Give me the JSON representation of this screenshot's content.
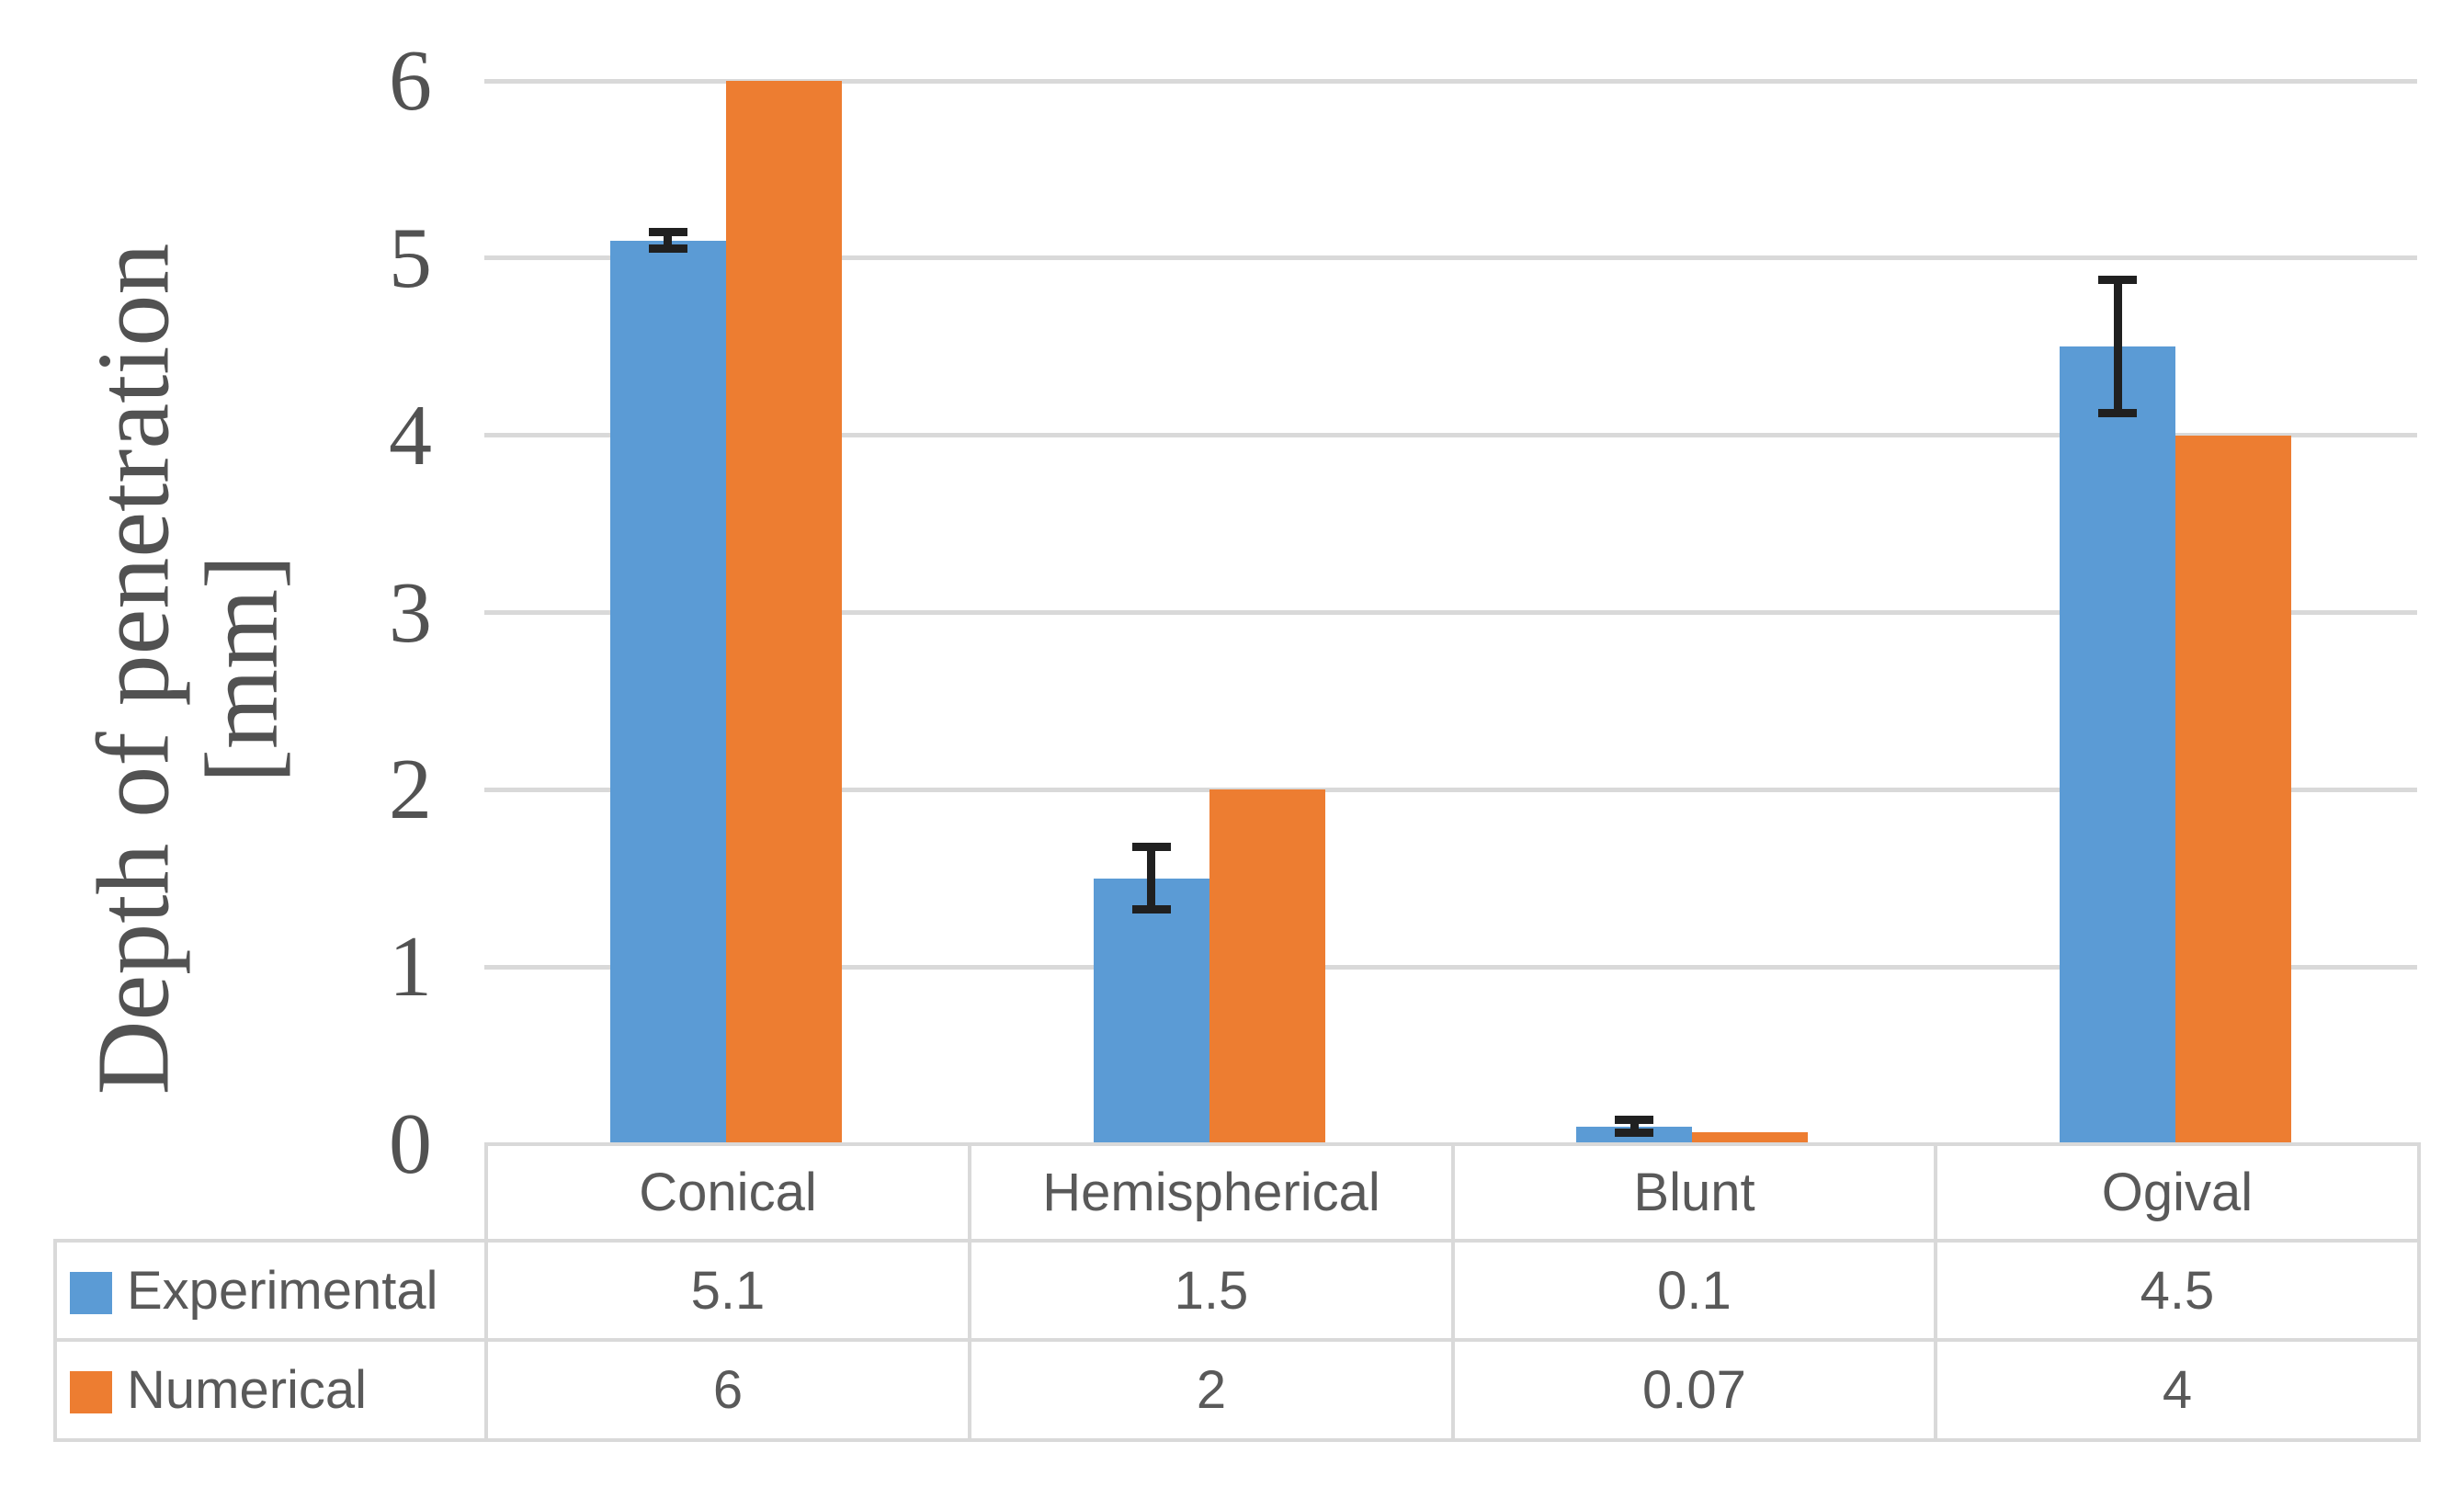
{
  "chart_data": {
    "type": "bar",
    "title": "",
    "ylabel": "Depth of penetration [mm]",
    "ylabel_lines": [
      "Depth of penetration",
      "[mm]"
    ],
    "categories": [
      "Conical",
      "Hemispherical",
      "Blunt",
      "Ogival"
    ],
    "series": [
      {
        "name": "Experimental",
        "color": "#5B9BD5",
        "values": [
          5.1,
          1.5,
          0.1,
          4.5
        ],
        "display_values": [
          "5.1",
          "1.5",
          "0.1",
          "4.5"
        ],
        "error_bars": {
          "plus_minus": [
            0.07,
            0.2,
            0.06,
            0.4
          ],
          "color": "#202020"
        }
      },
      {
        "name": "Numerical",
        "color": "#ED7D31",
        "values": [
          6,
          2,
          0.07,
          4
        ],
        "display_values": [
          "6",
          "2",
          "0.07",
          "4"
        ]
      }
    ],
    "ylim": [
      0,
      6
    ],
    "yticks": [
      "0",
      "1",
      "2",
      "3",
      "4",
      "5",
      "6"
    ],
    "grid": true,
    "legend_position": "data-table-keys"
  },
  "colors": {
    "experimental": "#5B9BD5",
    "numerical": "#ED7D31",
    "gridline": "#D9D9D9",
    "table_border": "#D9D9D9",
    "axis_text": "#525252",
    "table_text": "#595959",
    "error_bar": "#202020",
    "background": "#FFFFFF"
  }
}
